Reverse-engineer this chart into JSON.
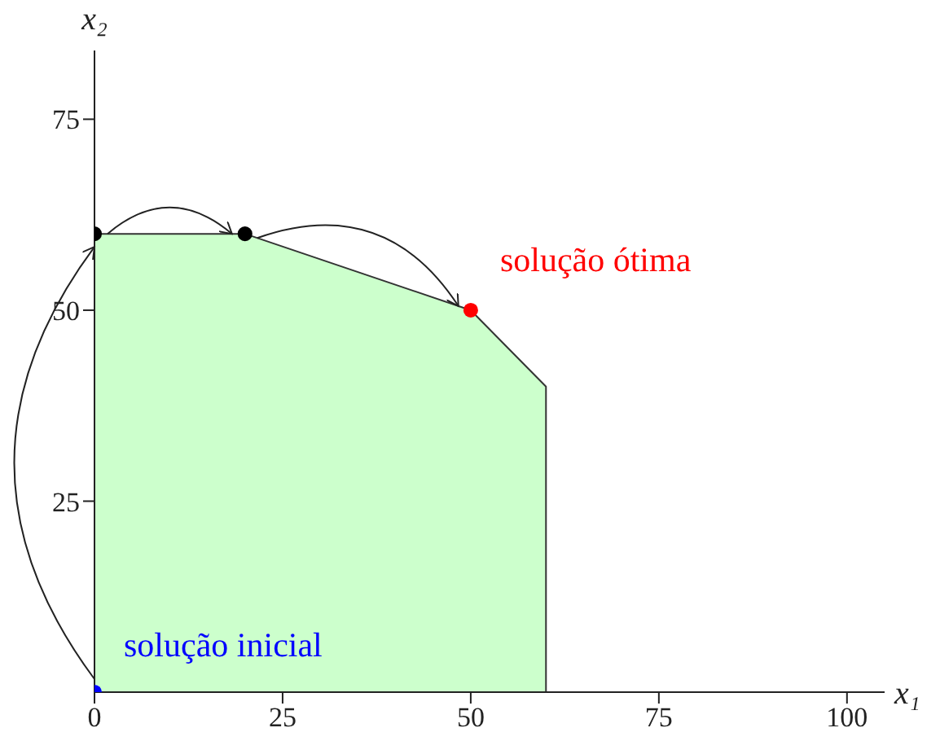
{
  "chart_data": {
    "type": "area",
    "xlabel": "x₁",
    "ylabel": "x₂",
    "xlim": [
      0,
      105
    ],
    "ylim": [
      0,
      84
    ],
    "xticks": [
      0,
      25,
      50,
      75,
      100
    ],
    "yticks": [
      25,
      50,
      75
    ],
    "grid": false,
    "series": [
      {
        "type": "area",
        "color": "#ccffcc",
        "x": [
          0,
          0,
          20,
          50,
          60,
          60
        ],
        "values": [
          0,
          60,
          60,
          50,
          40,
          0
        ]
      },
      {
        "type": "scatter",
        "marker": "circle",
        "x": [
          0,
          0,
          20,
          50
        ],
        "values": [
          0,
          60,
          60,
          50
        ],
        "colors": [
          "#0000ff",
          "#000000",
          "#000000",
          "#ff0000"
        ]
      }
    ],
    "annotations": [
      {
        "text": "solução inicial",
        "x": 0,
        "y": 0
      },
      {
        "text": "solução ótima",
        "x": 50,
        "y": 50
      }
    ]
  }
}
